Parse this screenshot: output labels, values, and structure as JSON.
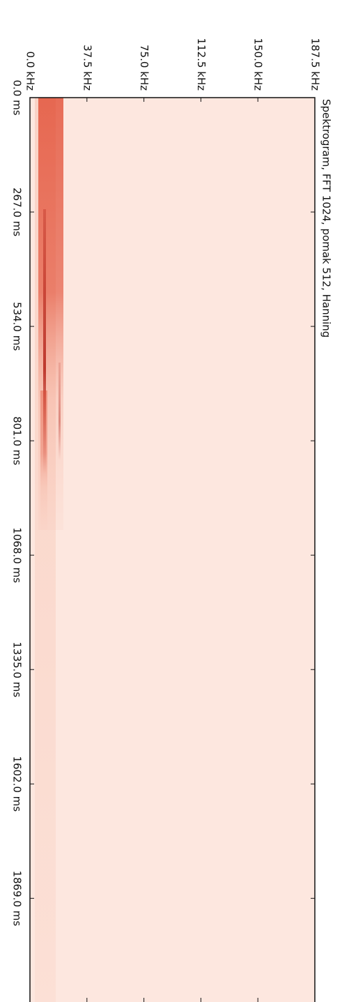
{
  "chart_data": {
    "type": "spectrogram",
    "title": "Spektrogram, FFT 1024, pomak 512, Hanning",
    "xlim": [
      0,
      187.5
    ],
    "xticks": [
      {
        "value": 0,
        "label": "0.0 kHz"
      },
      {
        "value": 37.5,
        "label": "37.5 kHz"
      },
      {
        "value": 75,
        "label": "75.0 kHz"
      },
      {
        "value": 112.5,
        "label": "112.5 kHz"
      },
      {
        "value": 150,
        "label": "150.0 kHz"
      },
      {
        "value": 187.5,
        "label": "187.5 kHz"
      }
    ],
    "ylim": [
      0,
      2111
    ],
    "yticks": [
      {
        "value": 0,
        "label": "0.0 ms"
      },
      {
        "value": 267,
        "label": "267.0 ms"
      },
      {
        "value": 534,
        "label": "534.0 ms"
      },
      {
        "value": 801,
        "label": "801.0 ms"
      },
      {
        "value": 1068,
        "label": "1068.0 ms"
      },
      {
        "value": 1335,
        "label": "1335.0 ms"
      },
      {
        "value": 1602,
        "label": "1602.0 ms"
      },
      {
        "value": 1869,
        "label": "1869.0 ms"
      }
    ]
  }
}
